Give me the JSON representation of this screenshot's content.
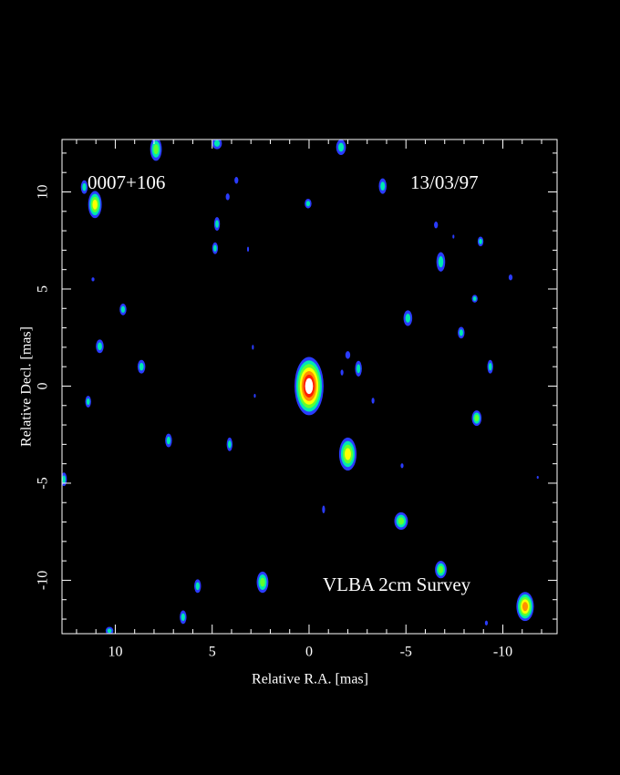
{
  "chart_data": {
    "type": "image",
    "annotations": [
      "0007+106",
      "13/03/97",
      "VLBA 2cm Survey"
    ],
    "x_label": "Relative R.A. [mas]",
    "y_label": "Relative Decl. [mas]",
    "xlim": [
      12.75,
      -12.8
    ],
    "ylim": [
      -12.75,
      12.7
    ],
    "xticks": [
      10,
      5,
      0,
      -5,
      -10
    ],
    "yticks": [
      -10,
      -5,
      0,
      5,
      10
    ],
    "x_minor_ticks": [
      12,
      11,
      9,
      8,
      7,
      6,
      4,
      3,
      2,
      1,
      -1,
      -2,
      -3,
      -4,
      -6,
      -7,
      -8,
      -9,
      -11,
      -12
    ],
    "y_minor_ticks": [
      -12,
      -11,
      -9,
      -8,
      -7,
      -6,
      -4,
      -3,
      -2,
      -1,
      1,
      2,
      3,
      4,
      6,
      7,
      8,
      9,
      11,
      12
    ],
    "colormap": [
      "#2a3cff",
      "#00e8b0",
      "#60ff30",
      "#ffff00",
      "#ff9000",
      "#ff2000",
      "#ffffff"
    ],
    "sources": [
      {
        "x": 0,
        "y": 0,
        "w": 1.5,
        "h": 3.0,
        "level": 6
      },
      {
        "x": -2.0,
        "y": -3.5,
        "w": 0.9,
        "h": 1.7,
        "level": 3
      },
      {
        "x": 11.05,
        "y": 9.35,
        "w": 0.7,
        "h": 1.4,
        "level": 3
      },
      {
        "x": -11.15,
        "y": -11.35,
        "w": 0.9,
        "h": 1.5,
        "level": 4
      },
      {
        "x": 7.9,
        "y": 12.2,
        "w": 0.6,
        "h": 1.2,
        "level": 2
      },
      {
        "x": 2.4,
        "y": -10.1,
        "w": 0.6,
        "h": 1.1,
        "level": 2
      },
      {
        "x": -4.75,
        "y": -6.95,
        "w": 0.7,
        "h": 0.9,
        "level": 2
      },
      {
        "x": -6.8,
        "y": -9.45,
        "w": 0.6,
        "h": 0.9,
        "level": 2
      },
      {
        "x": -8.65,
        "y": -1.65,
        "w": 0.5,
        "h": 0.8,
        "level": 2
      },
      {
        "x": -2.55,
        "y": 0.9,
        "w": 0.35,
        "h": 0.8,
        "level": 1
      },
      {
        "x": -5.1,
        "y": 3.5,
        "w": 0.45,
        "h": 0.8,
        "level": 1
      },
      {
        "x": -6.8,
        "y": 6.4,
        "w": 0.45,
        "h": 1.0,
        "level": 1
      },
      {
        "x": -3.8,
        "y": 10.3,
        "w": 0.4,
        "h": 0.8,
        "level": 1
      },
      {
        "x": -1.65,
        "y": 12.3,
        "w": 0.5,
        "h": 0.8,
        "level": 1
      },
      {
        "x": 4.75,
        "y": 12.5,
        "w": 0.5,
        "h": 0.6,
        "level": 1
      },
      {
        "x": 4.75,
        "y": 8.35,
        "w": 0.3,
        "h": 0.7,
        "level": 1
      },
      {
        "x": 4.85,
        "y": 7.1,
        "w": 0.3,
        "h": 0.6,
        "level": 1
      },
      {
        "x": 9.6,
        "y": 3.95,
        "w": 0.35,
        "h": 0.6,
        "level": 1
      },
      {
        "x": 10.8,
        "y": 2.05,
        "w": 0.4,
        "h": 0.7,
        "level": 1
      },
      {
        "x": 8.65,
        "y": 1.0,
        "w": 0.4,
        "h": 0.7,
        "level": 1
      },
      {
        "x": 11.6,
        "y": 10.25,
        "w": 0.35,
        "h": 0.7,
        "level": 1
      },
      {
        "x": 11.4,
        "y": -0.8,
        "w": 0.3,
        "h": 0.6,
        "level": 1
      },
      {
        "x": 7.25,
        "y": -2.8,
        "w": 0.35,
        "h": 0.7,
        "level": 1
      },
      {
        "x": 4.1,
        "y": -3.0,
        "w": 0.3,
        "h": 0.7,
        "level": 1
      },
      {
        "x": 5.75,
        "y": -10.3,
        "w": 0.35,
        "h": 0.7,
        "level": 1
      },
      {
        "x": 6.5,
        "y": -11.9,
        "w": 0.35,
        "h": 0.7,
        "level": 1
      },
      {
        "x": 10.3,
        "y": -12.6,
        "w": 0.4,
        "h": 0.4,
        "level": 1
      },
      {
        "x": 12.65,
        "y": -4.8,
        "w": 0.3,
        "h": 0.7,
        "level": 1
      },
      {
        "x": 0.05,
        "y": 9.4,
        "w": 0.35,
        "h": 0.5,
        "level": 1
      },
      {
        "x": -7.85,
        "y": 2.75,
        "w": 0.35,
        "h": 0.6,
        "level": 1
      },
      {
        "x": -9.35,
        "y": 1.0,
        "w": 0.3,
        "h": 0.7,
        "level": 1
      },
      {
        "x": -8.85,
        "y": 7.45,
        "w": 0.3,
        "h": 0.5,
        "level": 1
      },
      {
        "x": -8.55,
        "y": 4.5,
        "w": 0.3,
        "h": 0.4,
        "level": 1
      },
      {
        "x": 3.75,
        "y": 10.6,
        "w": 0.2,
        "h": 0.35,
        "level": 0
      },
      {
        "x": 4.2,
        "y": 9.75,
        "w": 0.2,
        "h": 0.35,
        "level": 0
      },
      {
        "x": -2.0,
        "y": 1.6,
        "w": 0.25,
        "h": 0.4,
        "level": 0
      },
      {
        "x": -10.4,
        "y": 5.6,
        "w": 0.2,
        "h": 0.3,
        "level": 0
      },
      {
        "x": -6.55,
        "y": 8.3,
        "w": 0.2,
        "h": 0.35,
        "level": 0
      },
      {
        "x": -3.3,
        "y": -0.75,
        "w": 0.15,
        "h": 0.3,
        "level": 0
      },
      {
        "x": -0.75,
        "y": -6.35,
        "w": 0.15,
        "h": 0.4,
        "level": 0
      },
      {
        "x": -4.8,
        "y": -4.1,
        "w": 0.15,
        "h": 0.25,
        "level": 0
      },
      {
        "x": -9.15,
        "y": -12.2,
        "w": 0.15,
        "h": 0.25,
        "level": 0
      },
      {
        "x": 11.15,
        "y": 5.5,
        "w": 0.15,
        "h": 0.2,
        "level": 0
      },
      {
        "x": -1.7,
        "y": 0.7,
        "w": 0.15,
        "h": 0.3,
        "level": 0
      },
      {
        "x": 3.15,
        "y": 7.05,
        "w": 0.1,
        "h": 0.25,
        "level": 0
      },
      {
        "x": 2.9,
        "y": 2.0,
        "w": 0.1,
        "h": 0.25,
        "level": 0
      },
      {
        "x": -11.8,
        "y": -4.7,
        "w": 0.1,
        "h": 0.15,
        "level": 0
      },
      {
        "x": 2.8,
        "y": -0.5,
        "w": 0.1,
        "h": 0.2,
        "level": 0
      },
      {
        "x": -7.45,
        "y": 7.7,
        "w": 0.1,
        "h": 0.2,
        "level": 0
      }
    ]
  }
}
